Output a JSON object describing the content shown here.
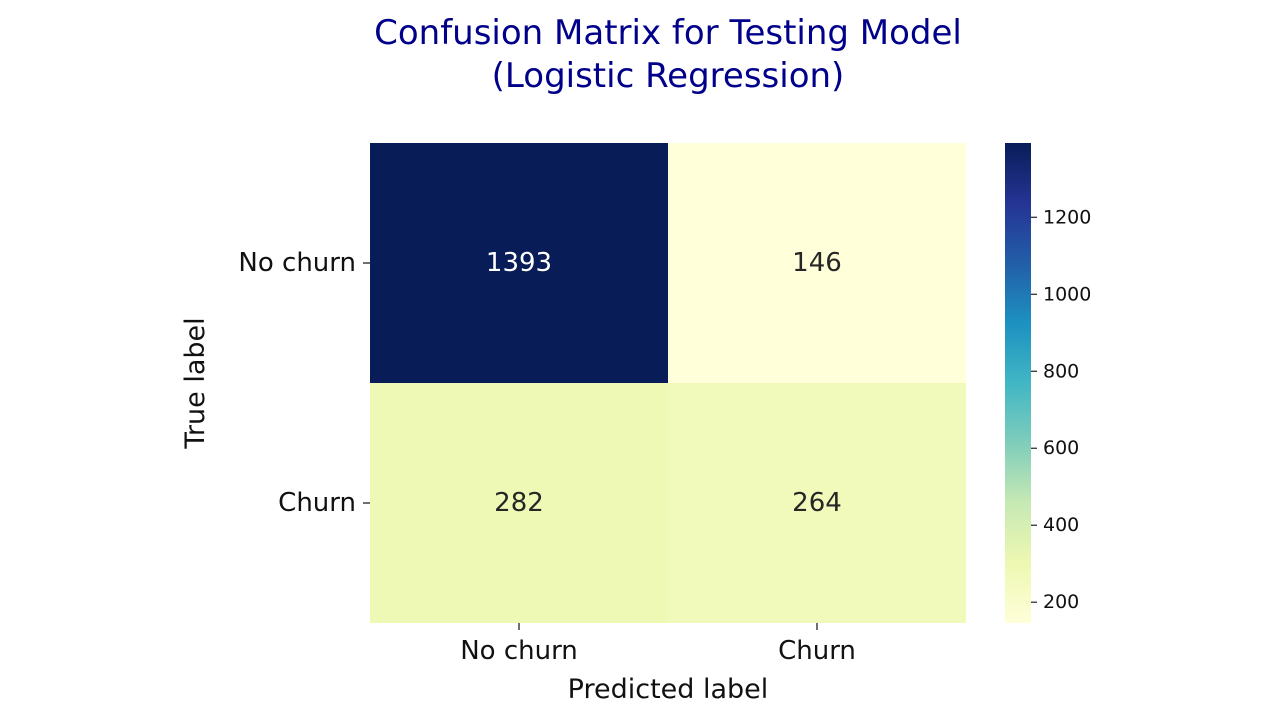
{
  "chart_data": {
    "type": "heatmap",
    "title": [
      "Confusion Matrix for Testing Model",
      "(Logistic Regression)"
    ],
    "xlabel": "Predicted label",
    "ylabel": "True label",
    "x_categories": [
      "No churn",
      "Churn"
    ],
    "y_categories": [
      "No churn",
      "Churn"
    ],
    "values": [
      [
        1393,
        146
      ],
      [
        282,
        264
      ]
    ],
    "colorscale": "YlGnBu",
    "colorbar": {
      "range": [
        146,
        1393
      ],
      "ticks": [
        200,
        400,
        600,
        800,
        1000,
        1200
      ]
    },
    "grid": false
  }
}
